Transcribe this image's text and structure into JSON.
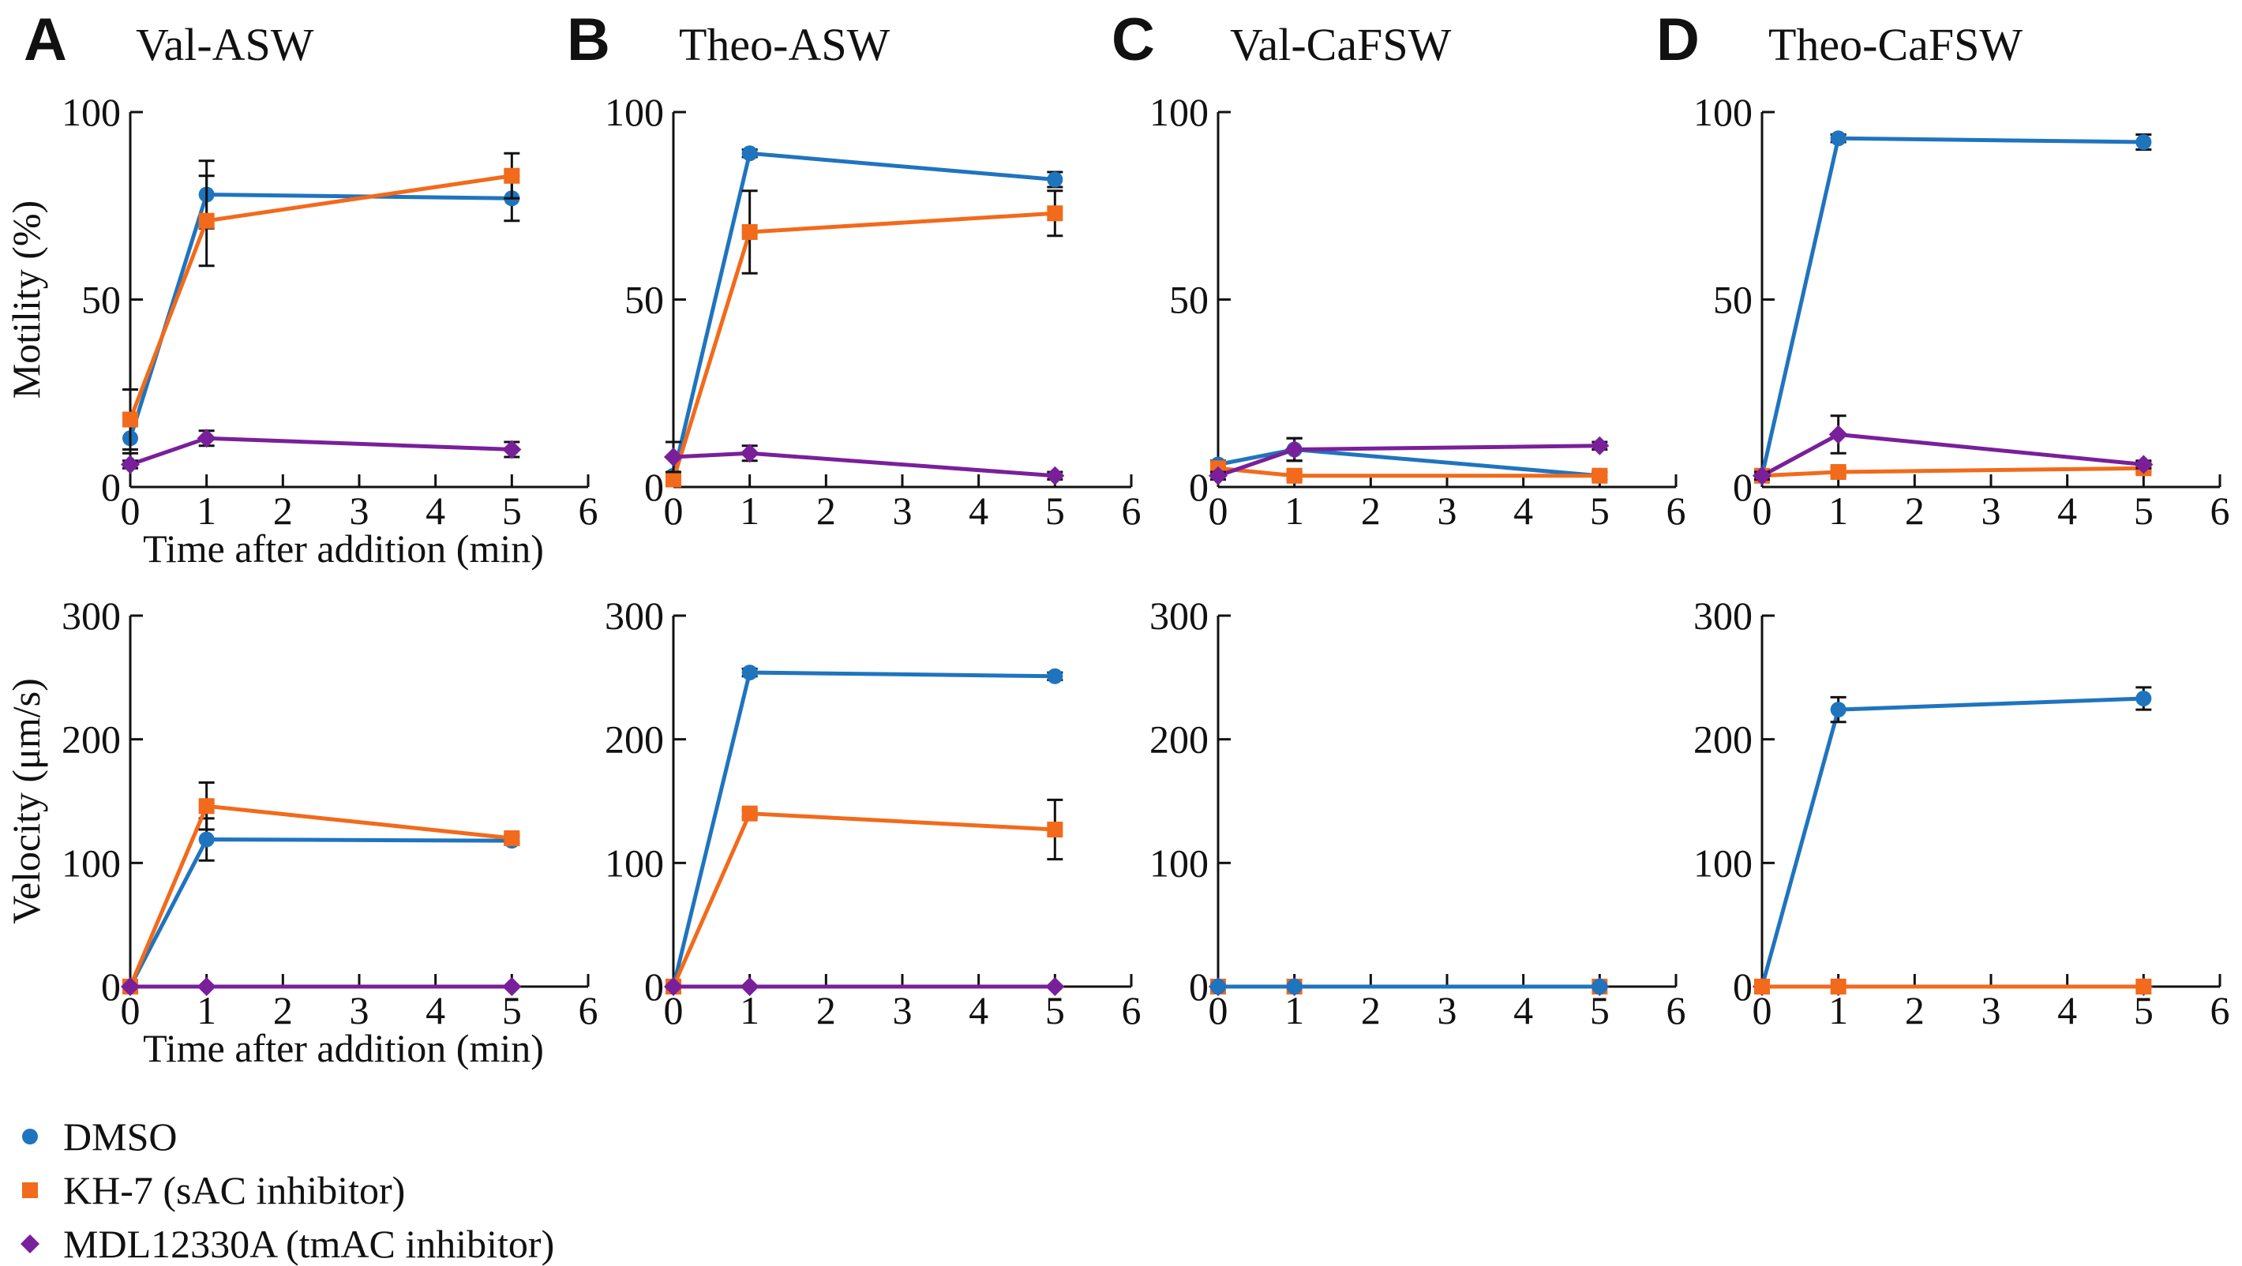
{
  "legend": [
    {
      "name": "DMSO",
      "color": "#1f74be",
      "marker": "circle-marker"
    },
    {
      "name": "KH-7 (sAC inhibitor)",
      "color": "#f26a1b",
      "marker": "square-marker"
    },
    {
      "name": "MDL12330A (tmAC inhibitor)",
      "color": "#7a1f9a",
      "marker": "diamond-marker"
    }
  ],
  "chart_data": [
    {
      "type": "line",
      "panel": "A",
      "title": "Val-ASW",
      "xlabel": "Time after addition (min)",
      "ylabel": "Motility (%)",
      "xlim": [
        0,
        6
      ],
      "ylim": [
        0,
        100
      ],
      "xticks": [
        "0",
        "1",
        "2",
        "3",
        "4",
        "5",
        "6"
      ],
      "yticks": [
        "0",
        "50",
        "100"
      ],
      "x": [
        0,
        1,
        5
      ],
      "series": [
        {
          "name": "DMSO",
          "values": [
            13,
            78,
            77
          ],
          "errors": [
            4,
            9,
            6
          ]
        },
        {
          "name": "KH-7 (sAC inhibitor)",
          "values": [
            18,
            71,
            83
          ],
          "errors": [
            8,
            12,
            6
          ]
        },
        {
          "name": "MDL12330A (tmAC inhibitor)",
          "values": [
            6,
            13,
            10
          ],
          "errors": [
            1,
            2,
            2
          ]
        }
      ]
    },
    {
      "type": "line",
      "panel": "B",
      "title": "Theo-ASW",
      "xlabel": "",
      "ylabel": "",
      "xlim": [
        0,
        6
      ],
      "ylim": [
        0,
        100
      ],
      "xticks": [
        "0",
        "1",
        "2",
        "3",
        "4",
        "5",
        "6"
      ],
      "yticks": [
        "0",
        "50",
        "100"
      ],
      "x": [
        0,
        1,
        5
      ],
      "series": [
        {
          "name": "DMSO",
          "values": [
            3,
            89,
            82
          ],
          "errors": [
            1,
            1,
            2
          ]
        },
        {
          "name": "KH-7 (sAC inhibitor)",
          "values": [
            2,
            68,
            73
          ],
          "errors": [
            1,
            11,
            6
          ]
        },
        {
          "name": "MDL12330A (tmAC inhibitor)",
          "values": [
            8,
            9,
            3
          ],
          "errors": [
            4,
            2,
            1
          ]
        }
      ]
    },
    {
      "type": "line",
      "panel": "C",
      "title": "Val-CaFSW",
      "xlabel": "",
      "ylabel": "",
      "xlim": [
        0,
        6
      ],
      "ylim": [
        0,
        100
      ],
      "xticks": [
        "0",
        "1",
        "2",
        "3",
        "4",
        "5",
        "6"
      ],
      "yticks": [
        "0",
        "50",
        "100"
      ],
      "x": [
        0,
        1,
        5
      ],
      "series": [
        {
          "name": "DMSO",
          "values": [
            6,
            10,
            3
          ],
          "errors": [
            1,
            3,
            1
          ]
        },
        {
          "name": "KH-7 (sAC inhibitor)",
          "values": [
            5,
            3,
            3
          ],
          "errors": [
            1,
            1,
            1
          ]
        },
        {
          "name": "MDL12330A (tmAC inhibitor)",
          "values": [
            3,
            10,
            11
          ],
          "errors": [
            1,
            3,
            1
          ]
        }
      ]
    },
    {
      "type": "line",
      "panel": "D",
      "title": "Theo-CaFSW",
      "xlabel": "",
      "ylabel": "",
      "xlim": [
        0,
        6
      ],
      "ylim": [
        0,
        100
      ],
      "xticks": [
        "0",
        "1",
        "2",
        "3",
        "4",
        "5",
        "6"
      ],
      "yticks": [
        "0",
        "50",
        "100"
      ],
      "x": [
        0,
        1,
        5
      ],
      "series": [
        {
          "name": "DMSO",
          "values": [
            3,
            93,
            92
          ],
          "errors": [
            1,
            1,
            2
          ]
        },
        {
          "name": "KH-7 (sAC inhibitor)",
          "values": [
            3,
            4,
            5
          ],
          "errors": [
            1,
            1,
            1
          ]
        },
        {
          "name": "MDL12330A (tmAC inhibitor)",
          "values": [
            3,
            14,
            6
          ],
          "errors": [
            1,
            5,
            1
          ]
        }
      ]
    },
    {
      "type": "line",
      "panel": "A",
      "title": "",
      "xlabel": "Time after addition (min)",
      "ylabel": "Velocity (μm/s)",
      "xlim": [
        0,
        6
      ],
      "ylim": [
        0,
        300
      ],
      "xticks": [
        "0",
        "1",
        "2",
        "3",
        "4",
        "5",
        "6"
      ],
      "yticks": [
        "0",
        "100",
        "200",
        "300"
      ],
      "x": [
        0,
        1,
        5
      ],
      "series": [
        {
          "name": "DMSO",
          "values": [
            0,
            119,
            118
          ],
          "errors": [
            0,
            17,
            3
          ]
        },
        {
          "name": "KH-7 (sAC inhibitor)",
          "values": [
            0,
            146,
            120
          ],
          "errors": [
            0,
            19,
            3
          ]
        },
        {
          "name": "MDL12330A (tmAC inhibitor)",
          "values": [
            0,
            0,
            0
          ],
          "errors": [
            0,
            0,
            0
          ]
        }
      ]
    },
    {
      "type": "line",
      "panel": "B",
      "title": "",
      "xlabel": "",
      "ylabel": "",
      "xlim": [
        0,
        6
      ],
      "ylim": [
        0,
        300
      ],
      "xticks": [
        "0",
        "1",
        "2",
        "3",
        "4",
        "5",
        "6"
      ],
      "yticks": [
        "0",
        "100",
        "200",
        "300"
      ],
      "x": [
        0,
        1,
        5
      ],
      "series": [
        {
          "name": "DMSO",
          "values": [
            0,
            254,
            251
          ],
          "errors": [
            0,
            3,
            3
          ]
        },
        {
          "name": "KH-7 (sAC inhibitor)",
          "values": [
            0,
            140,
            127
          ],
          "errors": [
            0,
            3,
            24
          ]
        },
        {
          "name": "MDL12330A (tmAC inhibitor)",
          "values": [
            0,
            0,
            0
          ],
          "errors": [
            0,
            0,
            0
          ]
        }
      ]
    },
    {
      "type": "line",
      "panel": "C",
      "title": "",
      "xlabel": "",
      "ylabel": "",
      "xlim": [
        0,
        6
      ],
      "ylim": [
        0,
        300
      ],
      "xticks": [
        "0",
        "1",
        "2",
        "3",
        "4",
        "5",
        "6"
      ],
      "yticks": [
        "0",
        "100",
        "200",
        "300"
      ],
      "x": [
        0,
        1,
        5
      ],
      "series": [
        {
          "name": "KH-7 (sAC inhibitor)",
          "values": [
            0,
            0,
            0
          ],
          "errors": [
            0,
            0,
            0
          ]
        },
        {
          "name": "MDL12330A (tmAC inhibitor)",
          "values": [
            0,
            0,
            0
          ],
          "errors": [
            0,
            0,
            0
          ]
        },
        {
          "name": "DMSO",
          "values": [
            0,
            0,
            0
          ],
          "errors": [
            0,
            0,
            0
          ]
        }
      ]
    },
    {
      "type": "line",
      "panel": "D",
      "title": "",
      "xlabel": "",
      "ylabel": "",
      "xlim": [
        0,
        6
      ],
      "ylim": [
        0,
        300
      ],
      "xticks": [
        "0",
        "1",
        "2",
        "3",
        "4",
        "5",
        "6"
      ],
      "yticks": [
        "0",
        "100",
        "200",
        "300"
      ],
      "x": [
        0,
        1,
        5
      ],
      "series": [
        {
          "name": "DMSO",
          "values": [
            0,
            224,
            233
          ],
          "errors": [
            0,
            10,
            9
          ]
        },
        {
          "name": "MDL12330A (tmAC inhibitor)",
          "values": [
            0,
            0,
            0
          ],
          "errors": [
            0,
            0,
            0
          ]
        },
        {
          "name": "KH-7 (sAC inhibitor)",
          "values": [
            0,
            0,
            0
          ],
          "errors": [
            0,
            0,
            0
          ]
        }
      ]
    }
  ]
}
